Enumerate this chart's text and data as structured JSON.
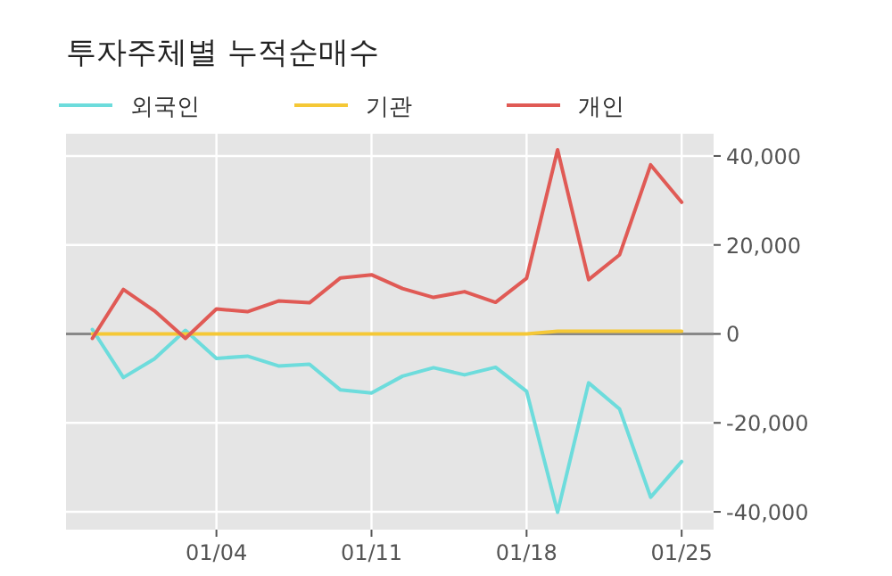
{
  "chart_data": {
    "type": "line",
    "title": "투자주체별 누적순매수",
    "categories": [
      null,
      null,
      null,
      null,
      "01/04",
      null,
      null,
      null,
      null,
      "01/11",
      null,
      null,
      null,
      null,
      "01/18",
      null,
      null,
      null,
      null,
      "01/25"
    ],
    "series": [
      {
        "name": "외국인",
        "color": "#6ddcdc",
        "values": [
          1000,
          -9800,
          -5600,
          800,
          -5500,
          -5000,
          -7200,
          -6800,
          -12600,
          -13300,
          -9500,
          -7600,
          -9200,
          -7500,
          -12900,
          -40100,
          -11000,
          -16900,
          -36700,
          -28700
        ]
      },
      {
        "name": "기관",
        "color": "#f5c836",
        "values": [
          0,
          0,
          0,
          0,
          0,
          0,
          0,
          0,
          0,
          0,
          0,
          0,
          0,
          0,
          0,
          600,
          600,
          600,
          600,
          600
        ]
      },
      {
        "name": "개인",
        "color": "#e05a55",
        "values": [
          -1000,
          10000,
          5200,
          -1000,
          5600,
          5000,
          7400,
          7000,
          12600,
          13300,
          10200,
          8200,
          9500,
          7100,
          12500,
          41400,
          12200,
          17800,
          38000,
          29600
        ]
      }
    ],
    "ylim": [
      -44000,
      45000
    ],
    "yticks": [
      {
        "value": -40000,
        "label": "-40,000"
      },
      {
        "value": -20000,
        "label": "-20,000"
      },
      0,
      {
        "value": 20000,
        "label": "20,000"
      },
      {
        "value": 40000,
        "label": "40,000"
      }
    ],
    "ref_lines": [
      {
        "axis": "y",
        "value": 0,
        "color": "#888888"
      }
    ],
    "grid": true,
    "legend": "top left"
  }
}
